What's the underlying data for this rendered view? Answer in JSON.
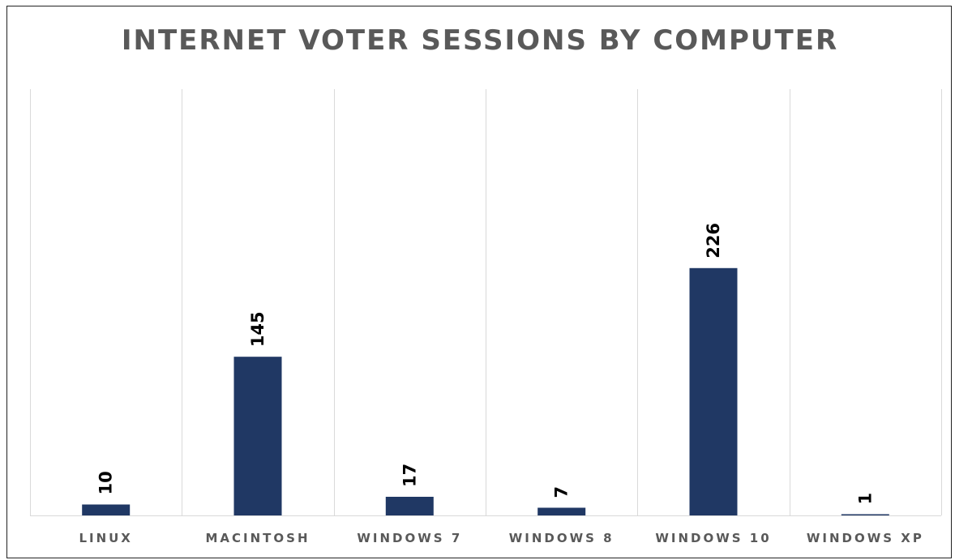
{
  "chart_data": {
    "type": "bar",
    "title": "INTERNET VOTER SESSIONS BY COMPUTER",
    "categories": [
      "LINUX",
      "MACINTOSH",
      "WINDOWS 7",
      "WINDOWS 8",
      "WINDOWS 10",
      "WINDOWS XP"
    ],
    "values": [
      10,
      145,
      17,
      7,
      226,
      1
    ],
    "xlabel": "",
    "ylabel": "",
    "ylim": [
      0,
      250
    ],
    "grid": "vertical",
    "legend": "none",
    "data_labels": true,
    "colors": {
      "bar": "#203864",
      "grid": "#d9d9d9",
      "axis": "#d9d9d9",
      "title": "#595959",
      "category_text": "#595959",
      "data_label_text": "#000000"
    }
  }
}
